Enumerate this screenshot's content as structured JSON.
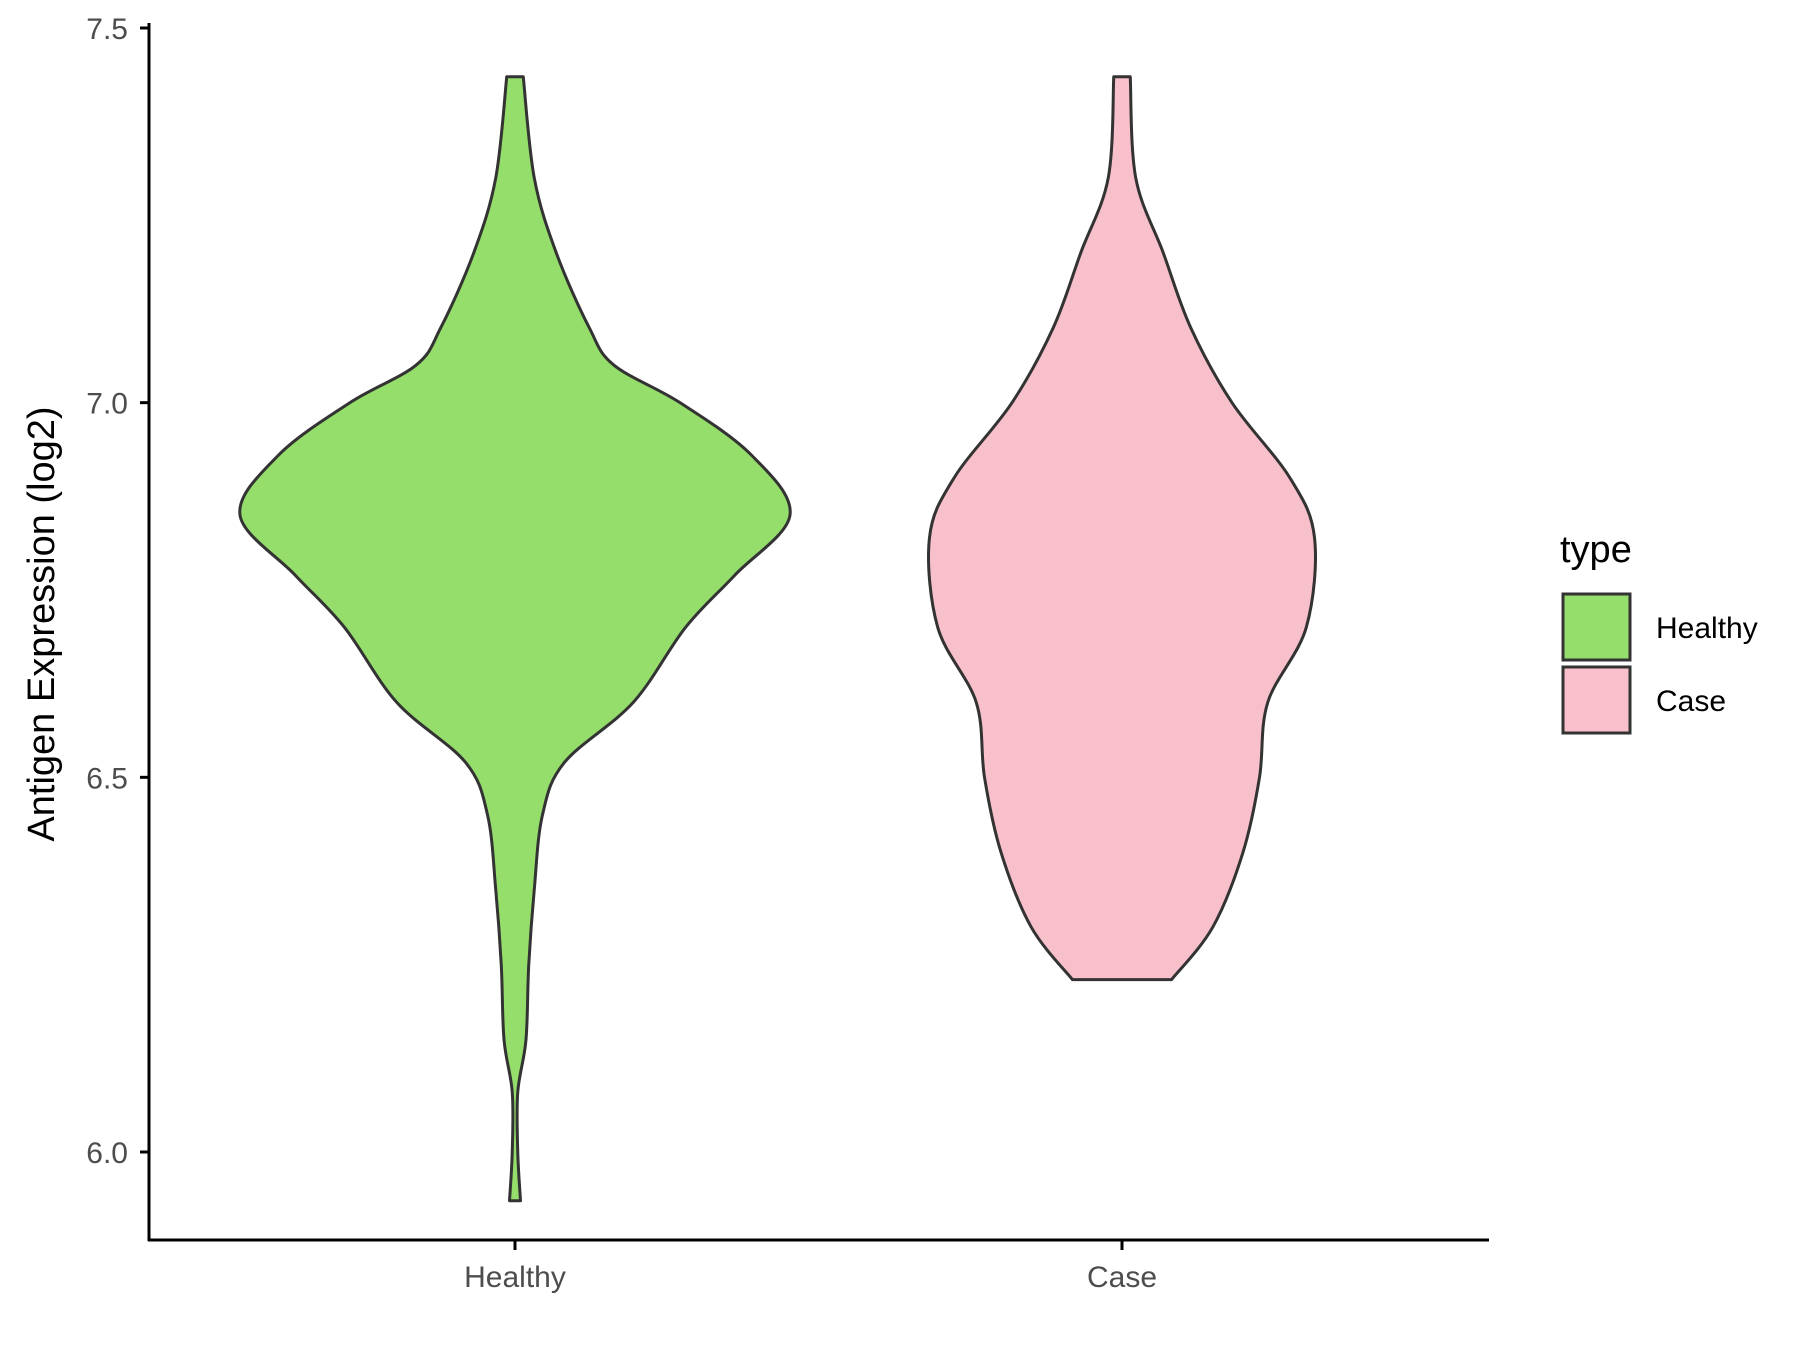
{
  "chart_data": {
    "type": "violin",
    "ylabel": "Antigen Expression (log2)",
    "xlabel": "",
    "categories": [
      "Healthy",
      "Case"
    ],
    "ylim": [
      5.86,
      7.53
    ],
    "yticks": [
      6.0,
      6.5,
      7.0,
      7.5
    ],
    "ytick_labels": [
      "6.0",
      "6.5",
      "7.0",
      "7.5"
    ],
    "grid": false,
    "legend": {
      "title": "type",
      "position": "right",
      "entries": [
        {
          "label": "Healthy",
          "color": "#95DE6B"
        },
        {
          "label": "Case",
          "color": "#F8C0CB"
        }
      ]
    },
    "series": [
      {
        "category": "Healthy",
        "color": "#95DE6B",
        "min": 5.935,
        "max": 7.435,
        "density_profile": [
          [
            5.935,
            0.02
          ],
          [
            6.0,
            0.01
          ],
          [
            6.08,
            0.01
          ],
          [
            6.15,
            0.04
          ],
          [
            6.25,
            0.05
          ],
          [
            6.35,
            0.07
          ],
          [
            6.45,
            0.1
          ],
          [
            6.52,
            0.18
          ],
          [
            6.6,
            0.43
          ],
          [
            6.7,
            0.62
          ],
          [
            6.77,
            0.8
          ],
          [
            6.85,
            1.0
          ],
          [
            6.93,
            0.86
          ],
          [
            7.0,
            0.6
          ],
          [
            7.05,
            0.36
          ],
          [
            7.1,
            0.27
          ],
          [
            7.2,
            0.15
          ],
          [
            7.3,
            0.07
          ],
          [
            7.435,
            0.03
          ]
        ]
      },
      {
        "category": "Case",
        "color": "#F8C0CB",
        "min": 6.23,
        "max": 7.435,
        "density_profile": [
          [
            6.23,
            0.18
          ],
          [
            6.3,
            0.33
          ],
          [
            6.4,
            0.44
          ],
          [
            6.5,
            0.5
          ],
          [
            6.6,
            0.53
          ],
          [
            6.7,
            0.67
          ],
          [
            6.82,
            0.7
          ],
          [
            6.9,
            0.61
          ],
          [
            7.0,
            0.4
          ],
          [
            7.1,
            0.25
          ],
          [
            7.2,
            0.15
          ],
          [
            7.3,
            0.05
          ],
          [
            7.435,
            0.03
          ]
        ]
      }
    ]
  }
}
